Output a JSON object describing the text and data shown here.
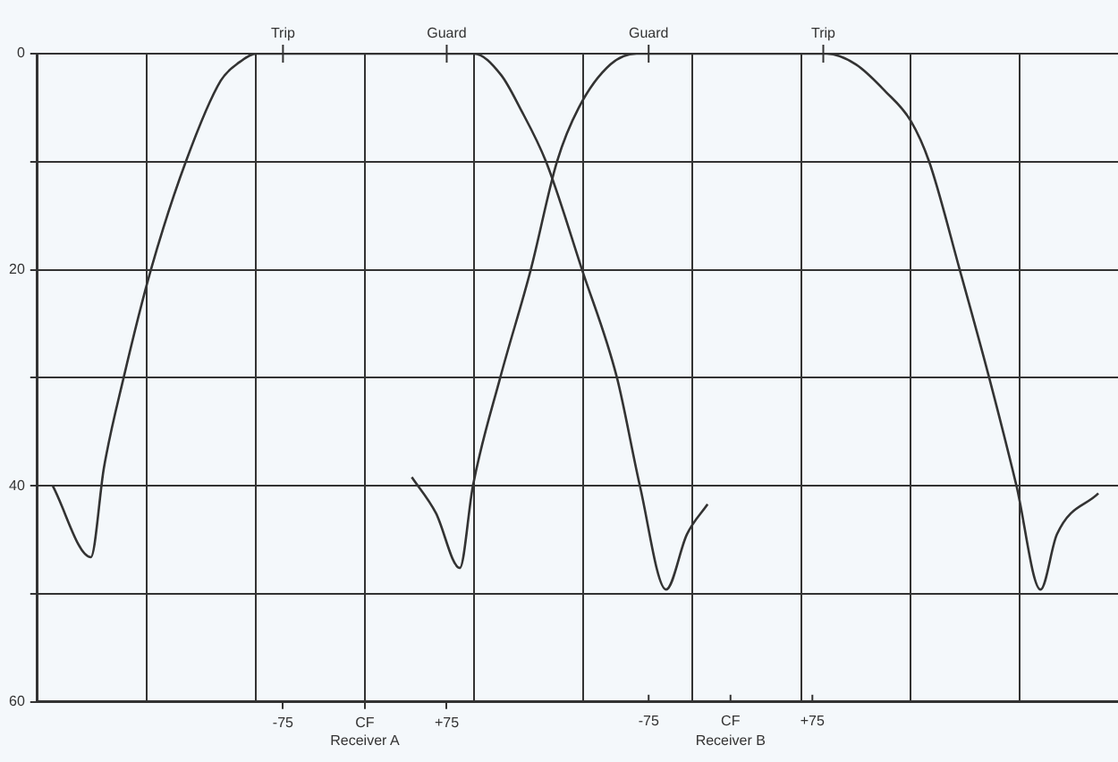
{
  "chart_data": {
    "type": "line",
    "xlim": [
      -300,
      690
    ],
    "xticks": [
      {
        "value": -300,
        "label": null
      },
      {
        "value": -200,
        "label": null
      },
      {
        "value": -100,
        "label": null
      },
      -75,
      {
        "value": 0,
        "label": null
      },
      {
        "value": 0,
        "label": "CF"
      },
      {
        "value": 75,
        "label": "+75"
      },
      {
        "value": 100,
        "label": null
      },
      {
        "value": 200,
        "label": null
      },
      {
        "value": 300,
        "label": null
      },
      {
        "value": 400,
        "label": null
      },
      {
        "value": 500,
        "label": null
      },
      {
        "value": 600,
        "label": null
      }
    ],
    "xlabel": "Receiver A",
    "x2lim": [
      -635,
      355
    ],
    "x2ticks": [
      -75,
      {
        "value": 0,
        "label": "CF"
      },
      {
        "value": 75,
        "label": "+75"
      }
    ],
    "x2label": "Receiver B",
    "ylim": [
      60,
      0
    ],
    "yticks": [
      0,
      {
        "value": 10,
        "label": null
      },
      20,
      {
        "value": 30,
        "label": null
      },
      40,
      {
        "value": 50,
        "label": null
      },
      60
    ],
    "grid": true,
    "legend": false,
    "marker": "none",
    "line_style": "solid",
    "annotations": [
      {
        "text": "Trip",
        "x": -75,
        "y": 0
      },
      {
        "text": "Guard",
        "x": 75,
        "y": 0
      },
      {
        "text": "Guard",
        "x": 260,
        "y": 0
      },
      {
        "text": "Trip",
        "x": 420,
        "y": 0
      }
    ],
    "series": [
      {
        "color": "#333333",
        "x": [
          -286,
          -251,
          -239,
          -221,
          -196,
          -164,
          -132,
          -115,
          -99,
          100,
          125,
          142,
          166,
          199,
          231,
          252,
          276,
          295,
          314
        ],
        "values": [
          40,
          46.6,
          38.3,
          30,
          20,
          10,
          2.5,
          0.8,
          0,
          0,
          2,
          5,
          10,
          20,
          30,
          40,
          49.6,
          44.5,
          41.7
        ]
      },
      {
        "color": "#333333",
        "x": [
          43,
          65,
          87,
          99,
          124,
          152,
          176,
          196,
          225,
          249,
          423,
          450,
          477,
          500,
          517,
          545,
          572,
          597,
          619,
          634,
          672
        ],
        "values": [
          39.2,
          42.5,
          47.6,
          40,
          30,
          20,
          10,
          5,
          1,
          0,
          0,
          1,
          3.5,
          6.2,
          10,
          20,
          30,
          40,
          49.6,
          44.5,
          40.7
        ]
      }
    ]
  }
}
